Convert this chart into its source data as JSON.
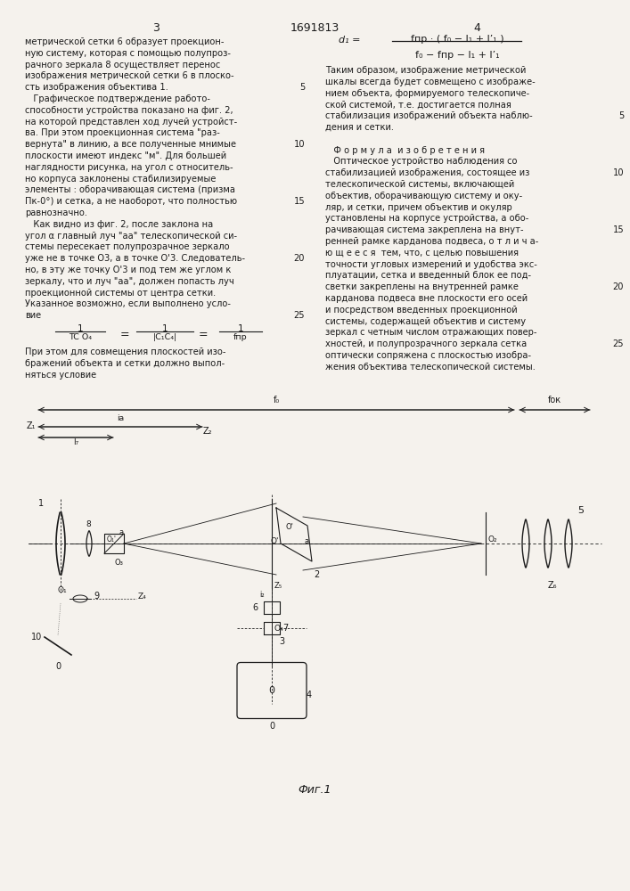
{
  "background_color": "#f5f2ed",
  "text_color": "#1a1a1a",
  "page_num_left": "3",
  "patent_number": "1691813",
  "page_num_right": "4",
  "figure_label": "Фиг.1",
  "left_col_lines": [
    "метрической сетки 6 образует проекцион-",
    "ную систему, которая с помощью полупроз-",
    "рачного зеркала 8 осуществляет перенос",
    "изображения метрической сетки 6 в плоско-",
    "сть изображения объектива 1.",
    "   Графическое подтверждение работо-",
    "способности устройства показано на фиг. 2,",
    "на которой представлен ход лучей устройст-",
    "ва. При этом проекционная система \"раз-",
    "вернута\" в линию, а все полученные мнимые",
    "плоскости имеют индекс \"м\". Для большей",
    "наглядности рисунка, на угол с относитель-",
    "но корпуса заклонены стабилизируемые",
    "элементы : оборачивающая система (призма",
    "Пк-0°) и сетка, а не наоборот, что полностью",
    "равнозначно.",
    "   Как видно из фиг. 2, после заклона на",
    "угол α главный луч \"аа\" телескопической си-",
    "стемы пересекает полупрозрачное зеркало",
    "уже не в точке О3, а в точке О'3. Следователь-",
    "но, в эту же точку О'3 и под тем же углом к",
    "зеркалу, что и луч \"аа\", должен попасть луч",
    "проекционной системы от центра сетки.",
    "Указанное возможно, если выполнено усло-",
    "вие"
  ],
  "left_col2_lines": [
    "При этом для совмещения плоскостей изо-",
    "бражений объекта и сетки должно выпол-",
    "няться условие"
  ],
  "right_col_lines": [
    "Таким образом, изображение метрической",
    "шкалы всегда будет совмещено с изображе-",
    "нием объекта, формируемого телескопиче-",
    "ской системой, т.е. достигается полная",
    "стабилизация изображений объекта наблю-",
    "дения и сетки.",
    "",
    "   Ф о р м у л а  и з о б р е т е н и я",
    "   Оптическое устройство наблюдения со",
    "стабилизацией изображения, состоящее из",
    "телескопической системы, включающей",
    "объектив, оборачивающую систему и оку-",
    "ляр, и сетки, причем объектив и окуляр",
    "установлены на корпусе устройства, а обо-",
    "рачивающая система закреплена на внут-",
    "ренней рамке карданова подвеса, о т л и ч а-",
    "ю щ е е с я  тем, что, с целью повышения",
    "точности угловых измерений и удобства экс-",
    "плуатации, сетка и введенный блок ее под-",
    "светки закреплены на внутренней рамке",
    "карданова подвеса вне плоскости его осей",
    "и посредством введенных проекционной",
    "системы, содержащей объектив и систему",
    "зеркал с четным числом отражающих повер-",
    "хностей, и полупрозрачного зеркала сетка",
    "оптически сопряжена с плоскостью изобра-",
    "жения объектива телескопической системы."
  ]
}
